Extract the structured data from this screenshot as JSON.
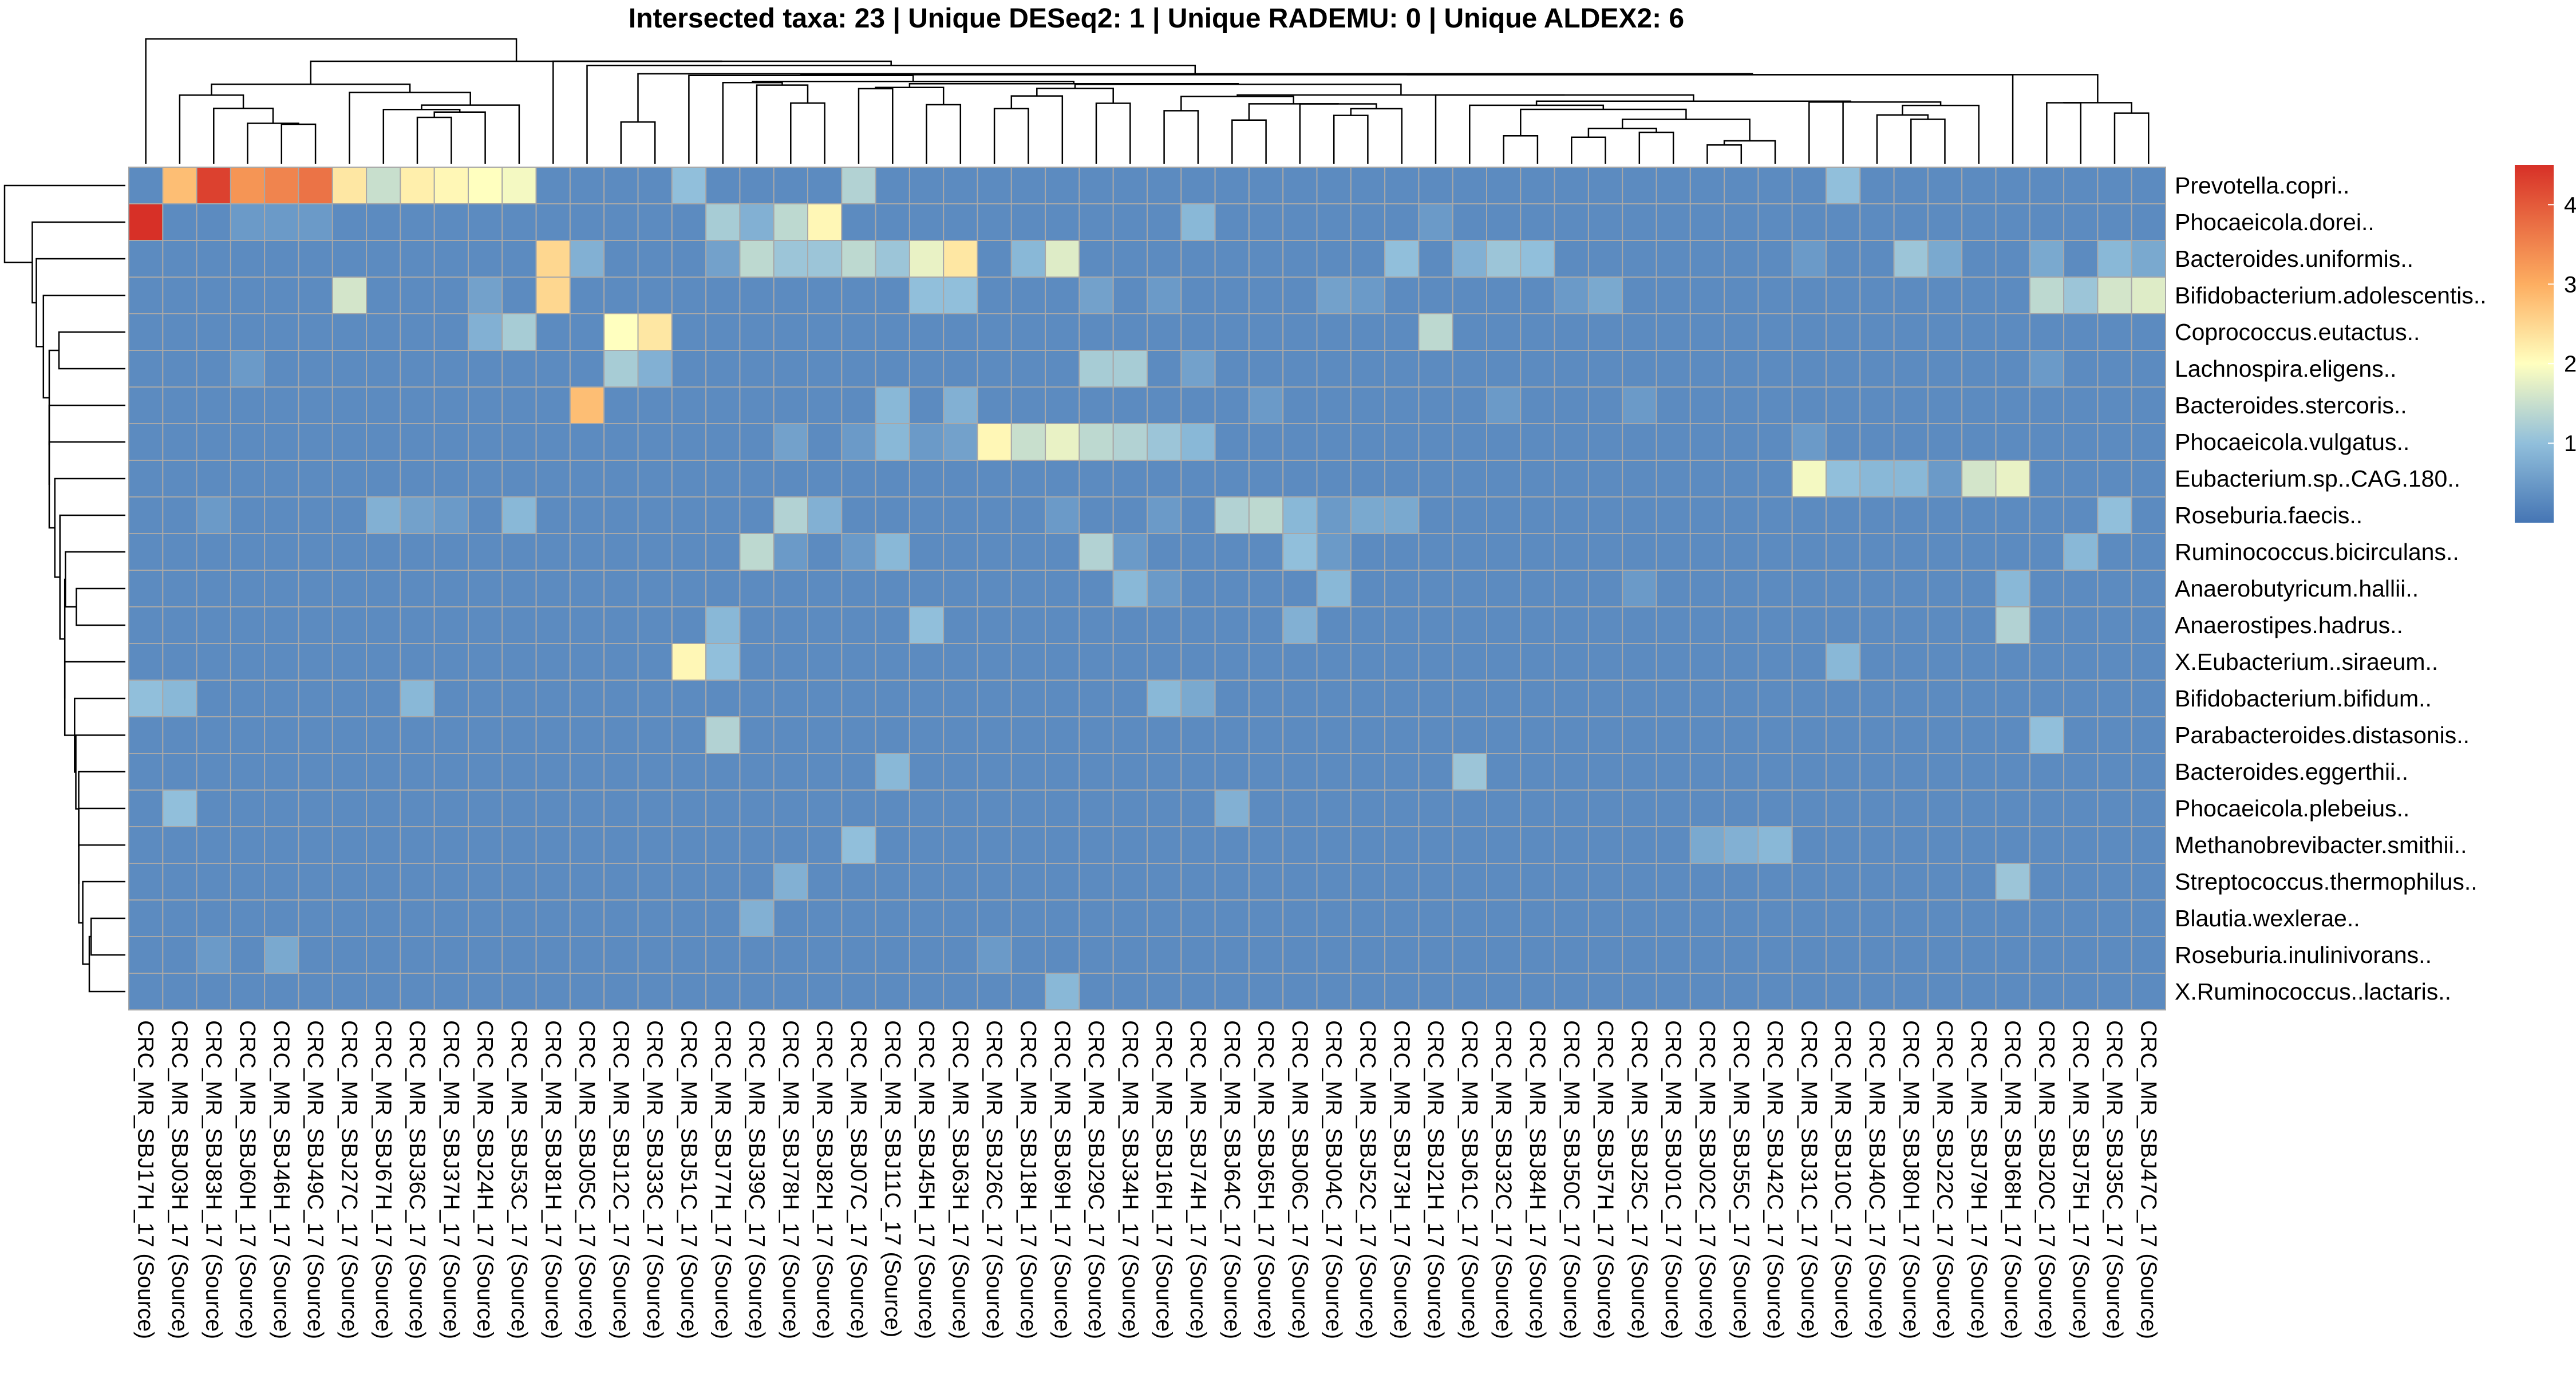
{
  "chart_data": {
    "type": "heatmap",
    "title": "Intersected taxa: 23 | Unique DESeq2: 1 | Unique RADEMU: 0 | Unique ALDEX2: 6",
    "row_labels": [
      "Prevotella.copri..",
      "Phocaeicola.dorei..",
      "Bacteroides.uniformis..",
      "Bifidobacterium.adolescentis..",
      "Coprococcus.eutactus..",
      "Lachnospira.eligens..",
      "Bacteroides.stercoris..",
      "Phocaeicola.vulgatus..",
      "Eubacterium.sp..CAG.180..",
      "Roseburia.faecis..",
      "Ruminococcus.bicirculans..",
      "Anaerobutyricum.hallii..",
      "Anaerostipes.hadrus..",
      "X.Eubacterium..siraeum..",
      "Bifidobacterium.bifidum..",
      "Parabacteroides.distasonis..",
      "Bacteroides.eggerthii..",
      "Phocaeicola.plebeius..",
      "Methanobrevibacter.smithii..",
      "Streptococcus.thermophilus..",
      "Blautia.wexlerae..",
      "Roseburia.inulinivorans..",
      "X.Ruminococcus..lactaris.."
    ],
    "col_labels": [
      "CRC_MR_SBJ17H_17 (Source)",
      "CRC_MR_SBJ03H_17 (Source)",
      "CRC_MR_SBJ83H_17 (Source)",
      "CRC_MR_SBJ60H_17 (Source)",
      "CRC_MR_SBJ46H_17 (Source)",
      "CRC_MR_SBJ49C_17 (Source)",
      "CRC_MR_SBJ27C_17 (Source)",
      "CRC_MR_SBJ67H_17 (Source)",
      "CRC_MR_SBJ36C_17 (Source)",
      "CRC_MR_SBJ37H_17 (Source)",
      "CRC_MR_SBJ24H_17 (Source)",
      "CRC_MR_SBJ53C_17 (Source)",
      "CRC_MR_SBJ81H_17 (Source)",
      "CRC_MR_SBJ05C_17 (Source)",
      "CRC_MR_SBJ12C_17 (Source)",
      "CRC_MR_SBJ33C_17 (Source)",
      "CRC_MR_SBJ51C_17 (Source)",
      "CRC_MR_SBJ77H_17 (Source)",
      "CRC_MR_SBJ39C_17 (Source)",
      "CRC_MR_SBJ78H_17 (Source)",
      "CRC_MR_SBJ82H_17 (Source)",
      "CRC_MR_SBJ07C_17 (Source)",
      "CRC_MR_SBJ11C_17 (Source)",
      "CRC_MR_SBJ45H_17 (Source)",
      "CRC_MR_SBJ63H_17 (Source)",
      "CRC_MR_SBJ26C_17 (Source)",
      "CRC_MR_SBJ18H_17 (Source)",
      "CRC_MR_SBJ69H_17 (Source)",
      "CRC_MR_SBJ29C_17 (Source)",
      "CRC_MR_SBJ34H_17 (Source)",
      "CRC_MR_SBJ16H_17 (Source)",
      "CRC_MR_SBJ74H_17 (Source)",
      "CRC_MR_SBJ64C_17 (Source)",
      "CRC_MR_SBJ65H_17 (Source)",
      "CRC_MR_SBJ06C_17 (Source)",
      "CRC_MR_SBJ04C_17 (Source)",
      "CRC_MR_SBJ52C_17 (Source)",
      "CRC_MR_SBJ73H_17 (Source)",
      "CRC_MR_SBJ21H_17 (Source)",
      "CRC_MR_SBJ61C_17 (Source)",
      "CRC_MR_SBJ32C_17 (Source)",
      "CRC_MR_SBJ84H_17 (Source)",
      "CRC_MR_SBJ50C_17 (Source)",
      "CRC_MR_SBJ57H_17 (Source)",
      "CRC_MR_SBJ25C_17 (Source)",
      "CRC_MR_SBJ01C_17 (Source)",
      "CRC_MR_SBJ02C_17 (Source)",
      "CRC_MR_SBJ55C_17 (Source)",
      "CRC_MR_SBJ42C_17 (Source)",
      "CRC_MR_SBJ31C_17 (Source)",
      "CRC_MR_SBJ10C_17 (Source)",
      "CRC_MR_SBJ40C_17 (Source)",
      "CRC_MR_SBJ80H_17 (Source)",
      "CRC_MR_SBJ22C_17 (Source)",
      "CRC_MR_SBJ79H_17 (Source)",
      "CRC_MR_SBJ68H_17 (Source)",
      "CRC_MR_SBJ20C_17 (Source)",
      "CRC_MR_SBJ75H_17 (Source)",
      "CRC_MR_SBJ35C_17 (Source)",
      "CRC_MR_SBJ47C_17 (Source)"
    ],
    "values": [
      [
        3,
        28,
        43,
        33,
        35,
        37,
        23,
        15,
        22,
        21,
        20,
        19,
        3,
        3,
        3,
        3,
        10,
        3,
        3,
        3,
        3,
        13,
        3,
        3,
        3,
        3,
        3,
        3,
        3,
        3,
        3,
        3,
        3,
        3,
        3,
        3,
        3,
        3,
        3,
        3,
        3,
        3,
        3,
        3,
        3,
        3,
        3,
        3,
        3,
        3,
        10,
        3,
        3,
        3,
        3,
        3,
        3,
        3,
        3,
        3
      ],
      [
        45,
        3,
        3,
        5,
        5,
        5,
        3,
        3,
        3,
        3,
        3,
        3,
        3,
        3,
        3,
        3,
        3,
        12,
        8,
        14,
        21,
        3,
        3,
        3,
        3,
        3,
        3,
        3,
        3,
        3,
        3,
        9,
        3,
        3,
        3,
        3,
        3,
        3,
        5,
        3,
        3,
        3,
        3,
        3,
        3,
        3,
        3,
        3,
        3,
        3,
        3,
        3,
        3,
        3,
        3,
        3,
        3,
        3,
        3,
        3
      ],
      [
        3,
        3,
        3,
        3,
        3,
        3,
        3,
        3,
        3,
        3,
        3,
        3,
        25,
        8,
        3,
        3,
        3,
        6,
        14,
        11,
        11,
        14,
        11,
        18,
        23,
        3,
        9,
        17,
        3,
        3,
        3,
        3,
        3,
        3,
        3,
        3,
        3,
        10,
        3,
        8,
        11,
        10,
        3,
        3,
        3,
        3,
        3,
        3,
        3,
        5,
        3,
        3,
        11,
        7,
        3,
        3,
        7,
        3,
        9,
        7
      ],
      [
        3,
        3,
        3,
        3,
        3,
        3,
        16,
        3,
        3,
        3,
        6,
        3,
        25,
        3,
        3,
        3,
        3,
        3,
        3,
        3,
        3,
        3,
        3,
        10,
        10,
        3,
        3,
        3,
        6,
        3,
        5,
        3,
        3,
        3,
        3,
        6,
        5,
        3,
        3,
        3,
        3,
        3,
        5,
        7,
        3,
        3,
        3,
        3,
        3,
        3,
        3,
        3,
        3,
        3,
        3,
        3,
        14,
        11,
        16,
        17
      ],
      [
        3,
        3,
        3,
        3,
        3,
        3,
        3,
        3,
        3,
        3,
        8,
        12,
        3,
        3,
        20,
        23,
        3,
        3,
        3,
        3,
        3,
        3,
        3,
        3,
        3,
        3,
        3,
        3,
        3,
        3,
        3,
        3,
        3,
        3,
        3,
        3,
        3,
        3,
        14,
        3,
        3,
        3,
        3,
        3,
        3,
        3,
        3,
        3,
        3,
        3,
        3,
        3,
        3,
        3,
        3,
        3,
        3,
        3,
        3,
        3
      ],
      [
        3,
        3,
        3,
        5,
        3,
        3,
        3,
        3,
        3,
        3,
        3,
        3,
        3,
        3,
        12,
        8,
        3,
        3,
        3,
        3,
        3,
        3,
        3,
        3,
        3,
        3,
        3,
        3,
        12,
        12,
        3,
        6,
        3,
        3,
        3,
        3,
        3,
        3,
        3,
        3,
        3,
        3,
        3,
        3,
        3,
        3,
        3,
        3,
        3,
        3,
        3,
        3,
        3,
        3,
        3,
        3,
        5,
        3,
        3,
        3
      ],
      [
        3,
        3,
        3,
        3,
        3,
        3,
        3,
        3,
        3,
        3,
        3,
        3,
        3,
        28,
        3,
        3,
        3,
        3,
        3,
        3,
        3,
        3,
        9,
        3,
        8,
        3,
        3,
        3,
        3,
        3,
        3,
        3,
        3,
        5,
        3,
        3,
        3,
        3,
        3,
        3,
        5,
        3,
        3,
        3,
        5,
        3,
        3,
        3,
        3,
        3,
        3,
        3,
        3,
        3,
        3,
        3,
        3,
        3,
        3,
        3
      ],
      [
        3,
        3,
        3,
        3,
        3,
        3,
        3,
        3,
        3,
        3,
        3,
        3,
        3,
        3,
        3,
        3,
        3,
        3,
        3,
        6,
        3,
        5,
        9,
        5,
        6,
        21,
        15,
        18,
        14,
        13,
        11,
        9,
        3,
        3,
        3,
        3,
        3,
        3,
        3,
        3,
        3,
        3,
        3,
        3,
        3,
        3,
        3,
        3,
        3,
        5,
        3,
        3,
        3,
        3,
        3,
        3,
        3,
        3,
        3,
        3
      ],
      [
        3,
        3,
        3,
        3,
        3,
        3,
        3,
        3,
        3,
        3,
        3,
        3,
        3,
        3,
        3,
        3,
        3,
        3,
        3,
        3,
        3,
        3,
        3,
        3,
        3,
        3,
        3,
        3,
        3,
        3,
        3,
        3,
        3,
        3,
        3,
        3,
        3,
        3,
        3,
        3,
        3,
        3,
        3,
        3,
        3,
        3,
        3,
        3,
        3,
        19,
        10,
        9,
        9,
        5,
        16,
        18,
        3,
        3,
        3,
        3
      ],
      [
        3,
        3,
        5,
        3,
        3,
        3,
        3,
        8,
        6,
        5,
        3,
        9,
        3,
        3,
        3,
        3,
        3,
        3,
        3,
        13,
        8,
        3,
        3,
        3,
        3,
        3,
        3,
        5,
        3,
        3,
        5,
        3,
        13,
        14,
        9,
        5,
        7,
        7,
        3,
        3,
        3,
        3,
        3,
        3,
        3,
        3,
        3,
        3,
        3,
        3,
        3,
        3,
        3,
        3,
        3,
        3,
        3,
        3,
        10,
        3
      ],
      [
        3,
        3,
        3,
        3,
        3,
        3,
        3,
        3,
        3,
        3,
        3,
        3,
        3,
        3,
        3,
        3,
        3,
        3,
        14,
        5,
        3,
        5,
        9,
        3,
        3,
        3,
        3,
        3,
        13,
        5,
        3,
        3,
        3,
        3,
        10,
        5,
        3,
        3,
        3,
        3,
        3,
        3,
        3,
        3,
        3,
        3,
        3,
        3,
        3,
        3,
        3,
        3,
        3,
        3,
        3,
        3,
        3,
        9,
        3,
        3
      ],
      [
        3,
        3,
        3,
        3,
        3,
        3,
        3,
        3,
        3,
        3,
        3,
        3,
        3,
        3,
        3,
        3,
        3,
        3,
        3,
        3,
        3,
        3,
        3,
        3,
        3,
        3,
        3,
        3,
        3,
        9,
        5,
        3,
        3,
        3,
        3,
        9,
        3,
        3,
        3,
        3,
        3,
        3,
        3,
        3,
        5,
        3,
        3,
        3,
        3,
        3,
        3,
        3,
        3,
        3,
        3,
        9,
        3,
        3,
        3,
        3
      ],
      [
        3,
        3,
        3,
        3,
        3,
        3,
        3,
        3,
        3,
        3,
        3,
        3,
        3,
        3,
        3,
        3,
        3,
        9,
        3,
        3,
        3,
        3,
        3,
        10,
        3,
        3,
        3,
        3,
        3,
        3,
        3,
        3,
        3,
        3,
        8,
        3,
        3,
        3,
        3,
        3,
        3,
        3,
        3,
        3,
        3,
        3,
        3,
        3,
        3,
        3,
        3,
        3,
        3,
        3,
        3,
        13,
        3,
        3,
        3,
        3
      ],
      [
        3,
        3,
        3,
        3,
        3,
        3,
        3,
        3,
        3,
        3,
        3,
        3,
        3,
        3,
        3,
        3,
        21,
        10,
        3,
        3,
        3,
        3,
        3,
        3,
        3,
        3,
        3,
        3,
        3,
        3,
        3,
        3,
        3,
        3,
        3,
        3,
        3,
        3,
        3,
        3,
        3,
        3,
        3,
        3,
        3,
        3,
        3,
        3,
        3,
        3,
        9,
        3,
        3,
        3,
        3,
        3,
        3,
        3,
        3,
        3
      ],
      [
        10,
        9,
        3,
        3,
        3,
        3,
        3,
        3,
        9,
        3,
        3,
        3,
        3,
        3,
        3,
        3,
        3,
        3,
        3,
        3,
        3,
        3,
        3,
        3,
        3,
        3,
        3,
        3,
        3,
        3,
        9,
        7,
        3,
        3,
        3,
        3,
        3,
        3,
        3,
        3,
        3,
        3,
        3,
        3,
        3,
        3,
        3,
        3,
        3,
        3,
        3,
        3,
        3,
        3,
        3,
        3,
        3,
        3,
        3,
        3
      ],
      [
        3,
        3,
        3,
        3,
        3,
        3,
        3,
        3,
        3,
        3,
        3,
        3,
        3,
        3,
        3,
        3,
        3,
        13,
        3,
        3,
        3,
        3,
        3,
        3,
        3,
        3,
        3,
        3,
        3,
        3,
        3,
        3,
        3,
        3,
        3,
        3,
        3,
        3,
        3,
        3,
        3,
        3,
        3,
        3,
        3,
        3,
        3,
        3,
        3,
        3,
        3,
        3,
        3,
        3,
        3,
        3,
        10,
        3,
        3,
        3
      ],
      [
        3,
        3,
        3,
        3,
        3,
        3,
        3,
        3,
        3,
        3,
        3,
        3,
        3,
        3,
        3,
        3,
        3,
        3,
        3,
        3,
        3,
        3,
        9,
        3,
        3,
        3,
        3,
        3,
        3,
        3,
        3,
        3,
        3,
        3,
        3,
        3,
        3,
        3,
        3,
        11,
        3,
        3,
        3,
        3,
        3,
        3,
        3,
        3,
        3,
        3,
        3,
        3,
        3,
        3,
        3,
        3,
        3,
        3,
        3,
        3
      ],
      [
        3,
        10,
        3,
        3,
        3,
        3,
        3,
        3,
        3,
        3,
        3,
        3,
        3,
        3,
        3,
        3,
        3,
        3,
        3,
        3,
        3,
        3,
        3,
        3,
        3,
        3,
        3,
        3,
        3,
        3,
        3,
        3,
        8,
        3,
        3,
        3,
        3,
        3,
        3,
        3,
        3,
        3,
        3,
        3,
        3,
        3,
        3,
        3,
        3,
        3,
        3,
        3,
        3,
        3,
        3,
        3,
        3,
        3,
        3,
        3
      ],
      [
        3,
        3,
        3,
        3,
        3,
        3,
        3,
        3,
        3,
        3,
        3,
        3,
        3,
        3,
        3,
        3,
        3,
        3,
        3,
        3,
        3,
        10,
        3,
        3,
        3,
        3,
        3,
        3,
        3,
        3,
        3,
        3,
        3,
        3,
        3,
        3,
        3,
        3,
        3,
        3,
        3,
        3,
        3,
        3,
        3,
        3,
        7,
        8,
        9,
        3,
        3,
        3,
        3,
        3,
        3,
        3,
        3,
        3,
        3,
        3
      ],
      [
        3,
        3,
        3,
        3,
        3,
        3,
        3,
        3,
        3,
        3,
        3,
        3,
        3,
        3,
        3,
        3,
        3,
        3,
        3,
        8,
        3,
        3,
        3,
        3,
        3,
        3,
        3,
        3,
        3,
        3,
        3,
        3,
        3,
        3,
        3,
        3,
        3,
        3,
        3,
        3,
        3,
        3,
        3,
        3,
        3,
        3,
        3,
        3,
        3,
        3,
        3,
        3,
        3,
        3,
        3,
        11,
        3,
        3,
        3,
        3
      ],
      [
        3,
        3,
        3,
        3,
        3,
        3,
        3,
        3,
        3,
        3,
        3,
        3,
        3,
        3,
        3,
        3,
        3,
        3,
        8,
        3,
        3,
        3,
        3,
        3,
        3,
        3,
        3,
        3,
        3,
        3,
        3,
        3,
        3,
        3,
        3,
        3,
        3,
        3,
        3,
        3,
        3,
        3,
        3,
        3,
        3,
        3,
        3,
        3,
        3,
        3,
        3,
        3,
        3,
        3,
        3,
        3,
        3,
        3,
        3,
        3
      ],
      [
        3,
        3,
        5,
        3,
        7,
        3,
        3,
        3,
        3,
        3,
        3,
        3,
        3,
        3,
        3,
        3,
        3,
        3,
        3,
        3,
        3,
        3,
        3,
        3,
        3,
        5,
        3,
        3,
        3,
        3,
        3,
        3,
        3,
        3,
        3,
        3,
        3,
        3,
        3,
        3,
        3,
        3,
        3,
        3,
        3,
        3,
        3,
        3,
        3,
        3,
        3,
        3,
        3,
        3,
        3,
        3,
        3,
        3,
        3,
        3
      ],
      [
        3,
        3,
        3,
        3,
        3,
        3,
        3,
        3,
        3,
        3,
        3,
        3,
        3,
        3,
        3,
        3,
        3,
        3,
        3,
        3,
        3,
        3,
        3,
        3,
        3,
        3,
        3,
        9,
        3,
        3,
        3,
        3,
        3,
        3,
        3,
        3,
        3,
        3,
        3,
        3,
        3,
        3,
        3,
        3,
        3,
        3,
        3,
        3,
        3,
        3,
        3,
        3,
        3,
        3,
        3,
        3,
        3,
        3,
        3,
        3
      ]
    ],
    "color_scale": {
      "min": 0,
      "max": 45,
      "stops": [
        {
          "value": 0,
          "color": "#4575b4"
        },
        {
          "value": 10,
          "color": "#91bfdb"
        },
        {
          "value": 20,
          "color": "#ffffbf"
        },
        {
          "value": 30,
          "color": "#fdae61"
        },
        {
          "value": 45,
          "color": "#d73027"
        }
      ]
    },
    "legend_ticks": [
      10,
      20,
      30,
      40
    ],
    "legend_placement": "right",
    "cell_border_color": "#a8a8a8",
    "row_dendrogram": true,
    "col_dendrogram": true
  }
}
